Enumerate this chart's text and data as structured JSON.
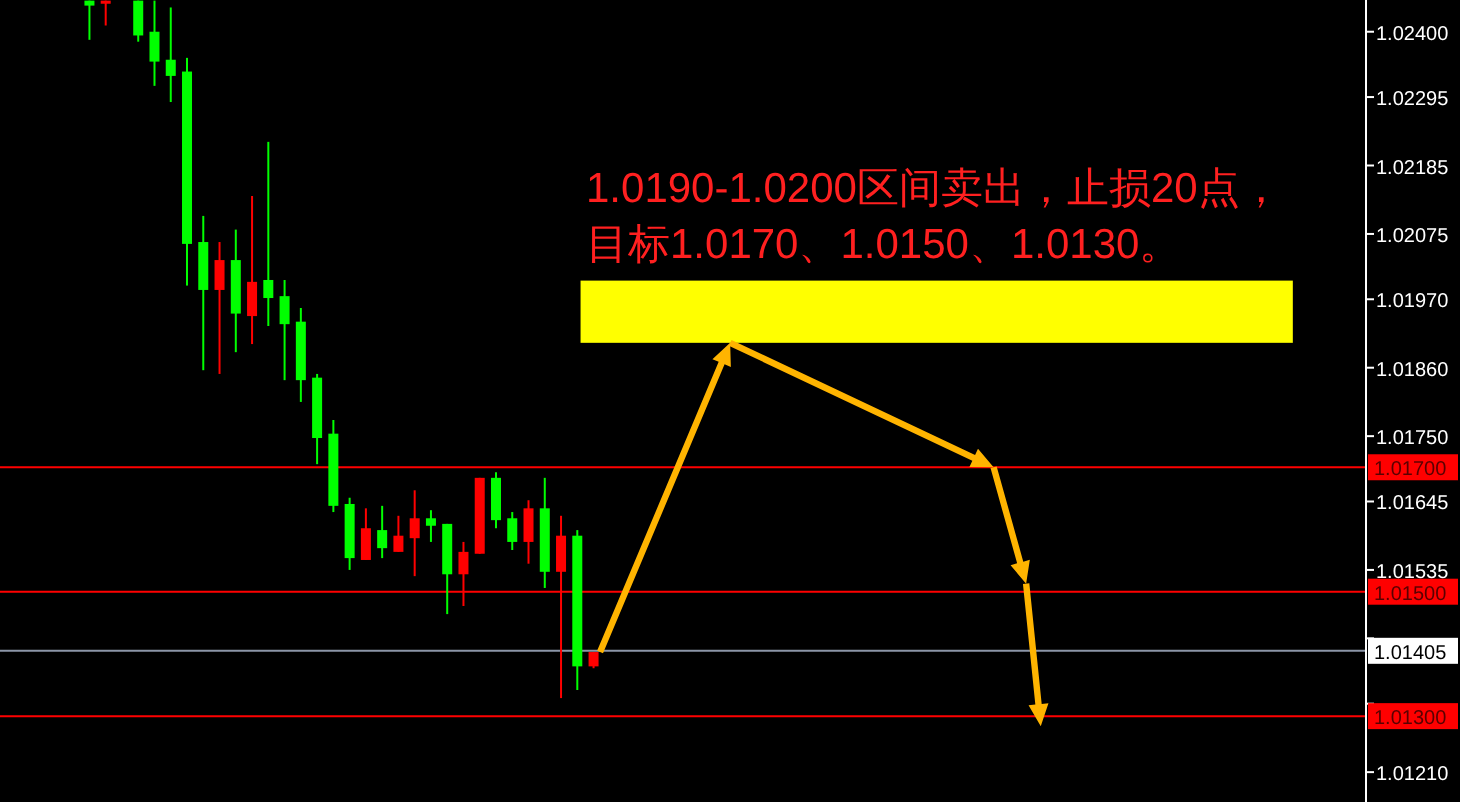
{
  "chart_data": {
    "type": "candlestick",
    "categories": [
      null,
      null,
      null,
      null,
      null,
      null,
      null,
      null,
      null,
      null,
      null,
      null,
      null,
      null,
      null,
      null,
      null,
      null,
      null,
      null,
      null,
      null,
      null,
      null,
      null,
      null,
      null,
      null,
      null,
      null,
      null,
      null,
      null,
      null,
      null,
      null,
      null,
      null,
      null,
      null,
      null,
      null,
      null,
      null,
      null,
      null,
      null,
      null,
      null,
      null,
      null,
      null,
      null,
      null,
      null,
      null,
      null,
      null,
      null,
      null,
      null,
      null,
      null,
      null,
      null,
      null,
      null,
      null,
      null,
      null,
      null,
      null,
      null,
      null,
      null,
      null,
      null,
      null,
      null,
      null,
      null,
      null,
      null,
      null
    ],
    "ohlc": [
      null,
      null,
      null,
      null,
      null,
      [
        1.0245,
        1.0245,
        1.02387,
        1.02442
      ],
      [
        1.02445,
        1.0245,
        1.0241,
        1.0245
      ],
      null,
      [
        1.0245,
        1.0245,
        1.02384,
        1.02394
      ],
      [
        1.024,
        1.0245,
        1.02313,
        1.02352
      ],
      [
        1.02355,
        1.02439,
        1.02287,
        1.02329
      ],
      [
        1.02336,
        1.02358,
        1.01992,
        1.02059
      ],
      [
        1.02062,
        1.02104,
        1.01856,
        1.01985
      ],
      [
        1.01985,
        1.02062,
        1.0185,
        1.02033
      ],
      [
        1.02033,
        1.02082,
        1.01885,
        1.01947
      ],
      [
        1.01943,
        1.02136,
        1.01898,
        1.01998
      ],
      [
        1.02001,
        1.02223,
        1.01927,
        1.01972
      ],
      [
        1.01975,
        1.02001,
        1.0184,
        1.0193
      ],
      [
        1.01934,
        1.01956,
        1.01805,
        1.0184
      ],
      [
        1.01844,
        1.0185,
        1.01705,
        1.01747
      ],
      [
        1.01754,
        1.01776,
        1.01628,
        1.01638
      ],
      [
        1.01641,
        1.01651,
        1.01535,
        1.01554
      ],
      [
        1.01551,
        1.01634,
        1.01551,
        1.01602
      ],
      [
        1.01599,
        1.01638,
        1.01554,
        1.0157
      ],
      [
        1.01564,
        1.01622,
        1.01564,
        1.0159
      ],
      [
        1.01586,
        1.01663,
        1.01525,
        1.01618
      ],
      [
        1.01618,
        1.01631,
        1.0158,
        1.01606
      ],
      [
        1.01609,
        1.01609,
        1.01464,
        1.01528
      ],
      [
        1.01528,
        1.0158,
        1.01477,
        1.01564
      ],
      [
        1.01561,
        1.01683,
        1.01561,
        1.01683
      ],
      [
        1.01683,
        1.01692,
        1.01602,
        1.01615
      ],
      [
        1.01618,
        1.01628,
        1.01567,
        1.0158
      ],
      [
        1.0158,
        1.01647,
        1.01545,
        1.01634
      ],
      [
        1.01634,
        1.01683,
        1.01506,
        1.01532
      ],
      [
        1.01532,
        1.01622,
        1.01329,
        1.0159
      ],
      [
        1.0159,
        1.01599,
        1.01342,
        1.0138
      ],
      [
        1.0138,
        1.01403,
        1.01377,
        1.01403
      ],
      null,
      null,
      null,
      null,
      null,
      null,
      null,
      null,
      null,
      null,
      null,
      null,
      null,
      null,
      null,
      null,
      null,
      null,
      null,
      null,
      null,
      null,
      null,
      null,
      null,
      null,
      null,
      null,
      null,
      null,
      null,
      null,
      null,
      null,
      null,
      null,
      null,
      null,
      null,
      null,
      null,
      null,
      null,
      null,
      null,
      null,
      null
    ],
    "colors": [
      null,
      null,
      null,
      null,
      null,
      "#00ff00",
      "#ff0000",
      null,
      "#00ff00",
      "#00ff00",
      "#00ff00",
      "#00ff00",
      "#00ff00",
      "#ff0000",
      "#00ff00",
      "#ff0000",
      "#00ff00",
      "#00ff00",
      "#00ff00",
      "#00ff00",
      "#00ff00",
      "#00ff00",
      "#ff0000",
      "#00ff00",
      "#ff0000",
      "#ff0000",
      "#00ff00",
      "#00ff00",
      "#ff0000",
      "#ff0000",
      "#00ff00",
      "#00ff00",
      "#ff0000",
      "#00ff00",
      "#ff0000",
      "#00ff00",
      "#ff0000",
      null,
      null,
      null,
      null,
      null,
      null,
      null,
      null,
      null,
      null,
      null,
      null,
      null,
      null,
      null,
      null,
      null,
      null,
      null,
      null,
      null,
      null,
      null,
      null,
      null,
      null,
      null,
      null,
      null,
      null,
      null,
      null,
      null,
      null,
      null,
      null,
      null,
      null,
      null,
      null,
      null,
      null,
      null,
      null,
      null,
      null,
      null
    ],
    "ylim": [
      1.01162,
      1.02451
    ],
    "yticks": [
      {
        "value": 1.024,
        "label": "1.02400"
      },
      {
        "value": 1.02295,
        "label": "1.02295"
      },
      {
        "value": 1.02185,
        "label": "1.02185"
      },
      {
        "value": 1.02075,
        "label": "1.02075"
      },
      {
        "value": 1.0197,
        "label": "1.01970"
      },
      {
        "value": 1.0186,
        "label": "1.01860"
      },
      {
        "value": 1.0175,
        "label": "1.01750"
      },
      {
        "value": 1.01645,
        "label": "1.01645"
      },
      {
        "value": 1.01535,
        "label": "1.01535"
      },
      {
        "value": 1.01425,
        "label": null
      },
      {
        "value": 1.0132,
        "label": null
      },
      {
        "value": 1.0121,
        "label": "1.01210"
      }
    ],
    "ref_lines": [
      {
        "axis": "y",
        "value": 1.017,
        "label": "1.01700",
        "color": "#ff0000"
      },
      {
        "axis": "y",
        "value": 1.015,
        "label": "1.01500",
        "color": "#ff0000"
      },
      {
        "axis": "y",
        "value": 1.01405,
        "label": "1.01405",
        "color": "#8c96a8"
      },
      {
        "axis": "y",
        "value": 1.013,
        "label": "1.01300",
        "color": "#ff0000"
      }
    ],
    "bands": [
      {
        "axis": "y",
        "from": 1.019,
        "to": 1.02,
        "color": "#ffff00"
      }
    ],
    "annotations": [
      "1.0190-1.0200区间卖出，止损20点，",
      "目标1.0170、1.0150、1.0130。"
    ]
  }
}
